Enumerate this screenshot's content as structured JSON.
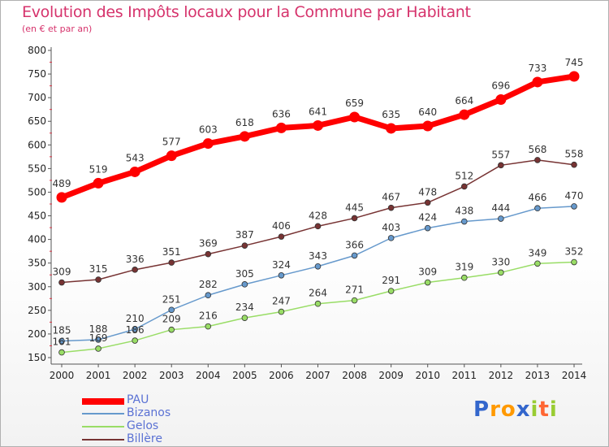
{
  "chart_data": {
    "type": "line",
    "title": "Evolution des Impôts locaux pour la Commune par Habitant",
    "subtitle": "(en € et par an)",
    "xlabel": "",
    "ylabel": "",
    "x": [
      "2000",
      "2001",
      "2002",
      "2003",
      "2004",
      "2005",
      "2006",
      "2007",
      "2008",
      "2009",
      "2010",
      "2011",
      "2012",
      "2013",
      "2014"
    ],
    "ylim": [
      150,
      800
    ],
    "yticks": [
      150,
      200,
      250,
      300,
      350,
      400,
      450,
      500,
      550,
      600,
      650,
      700,
      750,
      800
    ],
    "grid": false,
    "legend_position": "bottom-left",
    "series": [
      {
        "name": "PAU",
        "color": "#ff0000",
        "values": [
          489,
          519,
          543,
          577,
          603,
          618,
          636,
          641,
          659,
          635,
          640,
          664,
          696,
          733,
          745
        ]
      },
      {
        "name": "Bizanos",
        "color": "#6699cc",
        "values": [
          185,
          188,
          210,
          251,
          282,
          305,
          324,
          343,
          366,
          403,
          424,
          438,
          444,
          466,
          470
        ]
      },
      {
        "name": "Gelos",
        "color": "#99dd66",
        "values": [
          161,
          169,
          186,
          209,
          216,
          234,
          247,
          264,
          271,
          291,
          309,
          319,
          330,
          349,
          352
        ]
      },
      {
        "name": "Billère",
        "color": "#773333",
        "values": [
          309,
          315,
          336,
          351,
          369,
          387,
          406,
          428,
          445,
          467,
          478,
          512,
          557,
          568,
          558
        ]
      }
    ]
  },
  "brand": {
    "name": "Proxiti",
    "letters": [
      "P",
      "r",
      "o",
      "x",
      "i",
      "t",
      "i"
    ],
    "colors": [
      "#3366cc",
      "#ff9900",
      "#ff9900",
      "#3366cc",
      "#99cc33",
      "#ff6633",
      "#99cc33"
    ]
  }
}
